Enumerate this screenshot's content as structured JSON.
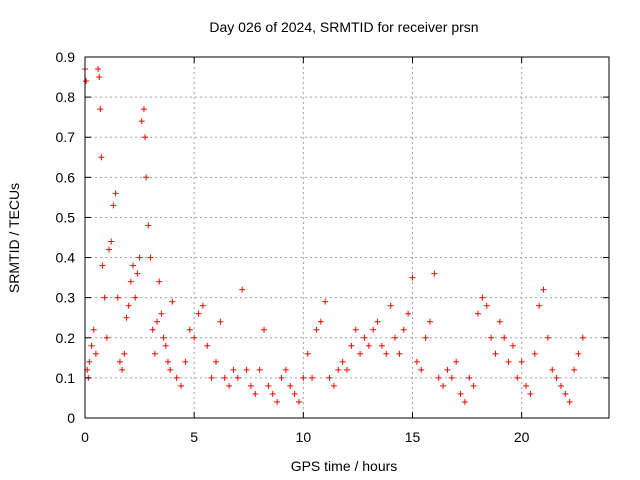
{
  "chart_data": {
    "type": "scatter",
    "title": "Day 026 of 2024, SRMTID for receiver prsn",
    "xlabel": "GPS time / hours",
    "ylabel": "SRMTID / TECUs",
    "xlim": [
      0,
      24
    ],
    "ylim": [
      0,
      0.9
    ],
    "xticks": [
      0,
      5,
      10,
      15,
      20
    ],
    "yticks": [
      0,
      0.1,
      0.2,
      0.3,
      0.4,
      0.5,
      0.6,
      0.7,
      0.8,
      0.9
    ],
    "xtick_labels": [
      "0",
      "5",
      "10",
      "15",
      "20"
    ],
    "ytick_labels": [
      "0",
      "0.1",
      "0.2",
      "0.3",
      "0.4",
      "0.5",
      "0.6",
      "0.7",
      "0.8",
      "0.9"
    ],
    "grid": true,
    "marker": "+",
    "color": "#ff0000",
    "series": [
      {
        "name": "SRMTID",
        "x": [
          0.0,
          0.05,
          0.1,
          0.15,
          0.2,
          0.3,
          0.4,
          0.5,
          0.6,
          0.65,
          0.7,
          0.75,
          0.8,
          0.9,
          1.0,
          1.1,
          1.2,
          1.3,
          1.4,
          1.5,
          1.6,
          1.7,
          1.8,
          1.9,
          2.0,
          2.1,
          2.2,
          2.3,
          2.4,
          2.5,
          2.6,
          2.7,
          2.75,
          2.8,
          2.9,
          3.0,
          3.1,
          3.2,
          3.3,
          3.4,
          3.5,
          3.6,
          3.7,
          3.8,
          3.9,
          4.0,
          4.2,
          4.4,
          4.6,
          4.8,
          5.0,
          5.2,
          5.4,
          5.6,
          5.8,
          6.0,
          6.2,
          6.4,
          6.6,
          6.8,
          7.0,
          7.2,
          7.4,
          7.6,
          7.8,
          8.0,
          8.2,
          8.4,
          8.6,
          8.8,
          9.0,
          9.2,
          9.4,
          9.6,
          9.8,
          10.0,
          10.2,
          10.4,
          10.6,
          10.8,
          11.0,
          11.2,
          11.4,
          11.6,
          11.8,
          12.0,
          12.2,
          12.4,
          12.6,
          12.8,
          13.0,
          13.2,
          13.4,
          13.6,
          13.8,
          14.0,
          14.2,
          14.4,
          14.6,
          14.8,
          15.0,
          15.2,
          15.4,
          15.6,
          15.8,
          16.0,
          16.2,
          16.4,
          16.6,
          16.8,
          17.0,
          17.2,
          17.4,
          17.6,
          17.8,
          18.0,
          18.2,
          18.4,
          18.6,
          18.8,
          19.0,
          19.2,
          19.4,
          19.6,
          19.8,
          20.0,
          20.2,
          20.4,
          20.6,
          20.8,
          21.0,
          21.2,
          21.4,
          21.6,
          21.8,
          22.0,
          22.2,
          22.4,
          22.6,
          22.8
        ],
        "y": [
          0.87,
          0.84,
          0.12,
          0.1,
          0.14,
          0.18,
          0.22,
          0.16,
          0.87,
          0.85,
          0.77,
          0.65,
          0.38,
          0.3,
          0.2,
          0.42,
          0.44,
          0.53,
          0.56,
          0.3,
          0.14,
          0.12,
          0.16,
          0.25,
          0.28,
          0.34,
          0.38,
          0.3,
          0.36,
          0.4,
          0.74,
          0.77,
          0.7,
          0.6,
          0.48,
          0.4,
          0.22,
          0.16,
          0.24,
          0.34,
          0.26,
          0.2,
          0.18,
          0.14,
          0.12,
          0.29,
          0.1,
          0.08,
          0.14,
          0.22,
          0.2,
          0.26,
          0.28,
          0.18,
          0.1,
          0.14,
          0.24,
          0.1,
          0.08,
          0.12,
          0.1,
          0.32,
          0.12,
          0.08,
          0.06,
          0.12,
          0.22,
          0.08,
          0.06,
          0.04,
          0.1,
          0.12,
          0.08,
          0.06,
          0.04,
          0.1,
          0.16,
          0.1,
          0.22,
          0.24,
          0.29,
          0.1,
          0.08,
          0.12,
          0.14,
          0.12,
          0.18,
          0.22,
          0.16,
          0.2,
          0.18,
          0.22,
          0.24,
          0.18,
          0.16,
          0.28,
          0.2,
          0.16,
          0.22,
          0.26,
          0.35,
          0.14,
          0.12,
          0.2,
          0.24,
          0.36,
          0.1,
          0.08,
          0.12,
          0.1,
          0.14,
          0.06,
          0.04,
          0.1,
          0.08,
          0.26,
          0.3,
          0.28,
          0.2,
          0.16,
          0.24,
          0.2,
          0.14,
          0.18,
          0.1,
          0.14,
          0.08,
          0.06,
          0.16,
          0.28,
          0.32,
          0.2,
          0.12,
          0.1,
          0.08,
          0.06,
          0.04,
          0.12,
          0.16,
          0.2
        ]
      }
    ]
  }
}
